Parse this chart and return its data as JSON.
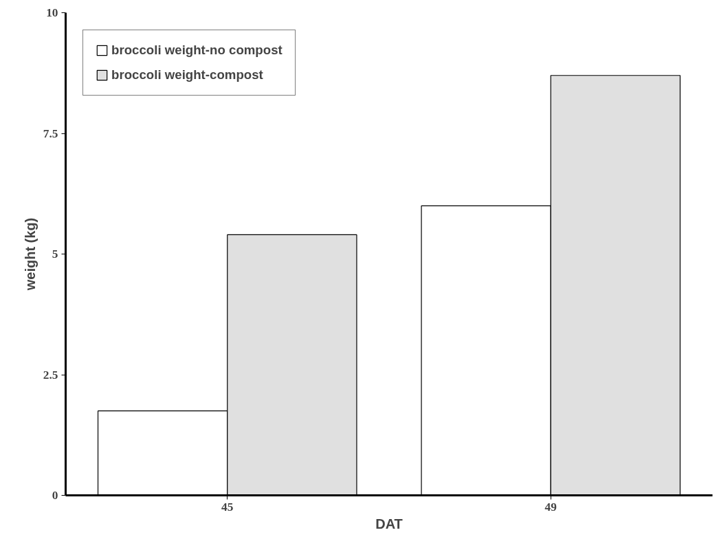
{
  "chart_data": {
    "type": "bar",
    "xlabel": "DAT",
    "ylabel": "weight (kg)",
    "categories": [
      "45",
      "49"
    ],
    "series": [
      {
        "name": "broccoli weight-no compost",
        "color": "#ffffff",
        "values": [
          1.75,
          6
        ]
      },
      {
        "name": "broccoli weight-compost",
        "color": "#e0e0e0",
        "values": [
          5.4,
          8.7
        ]
      }
    ],
    "ylim": [
      0,
      10
    ],
    "yticks": [
      0,
      2.5,
      5,
      7.5,
      10
    ],
    "grid": false,
    "legend": "top left"
  }
}
